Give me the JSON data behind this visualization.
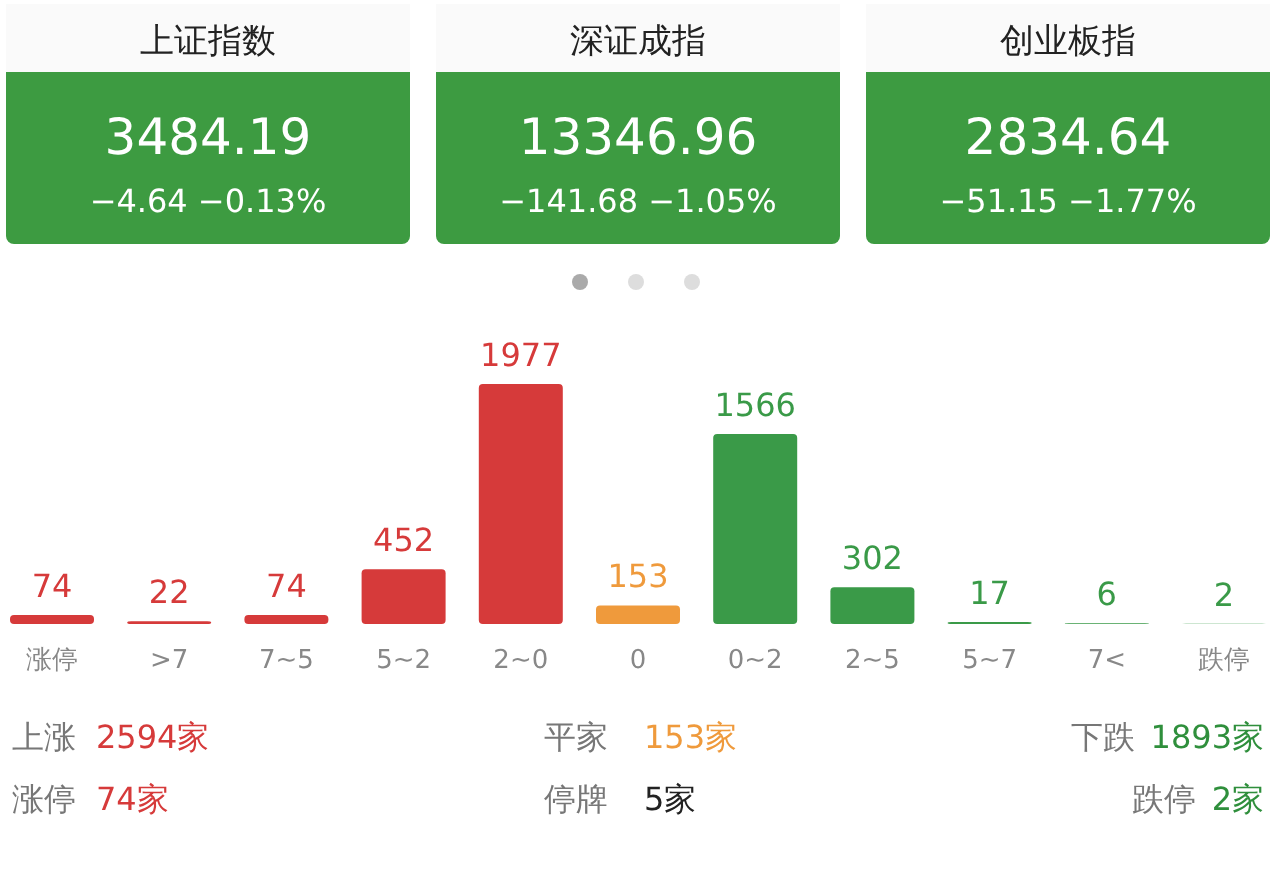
{
  "chart_data": [
    {
      "type": "other",
      "title": "上证指数",
      "annotations": [
        "3484.19",
        "−4.64",
        "−0.13%"
      ]
    },
    {
      "type": "other",
      "title": "深证成指",
      "annotations": [
        "13346.96",
        "−141.68",
        "−1.05%"
      ]
    },
    {
      "type": "other",
      "title": "创业板指",
      "annotations": [
        "2834.64",
        "−51.15",
        "−1.77%"
      ]
    },
    {
      "type": "bar",
      "categories": [
        "涨停",
        ">7",
        "7~5",
        "5~2",
        "2~0",
        "0",
        "0~2",
        "2~5",
        "5~7",
        "7<",
        "跌停"
      ],
      "values": [
        74,
        22,
        74,
        452,
        1977,
        153,
        1566,
        302,
        17,
        6,
        2
      ],
      "colors": [
        "#d63a3a",
        "#d63a3a",
        "#d63a3a",
        "#d63a3a",
        "#d63a3a",
        "#ef9a3c",
        "#3a9a48",
        "#3a9a48",
        "#3a9a48",
        "#3a9a48",
        "#3a9a48"
      ],
      "data_labels": true
    },
    {
      "type": "other",
      "annotations": [
        "上涨",
        "2594家",
        "平家",
        "153家",
        "下跌",
        "1893家",
        "涨停",
        "74家",
        "停牌",
        "5家",
        "跌停",
        "2家"
      ]
    }
  ]
}
